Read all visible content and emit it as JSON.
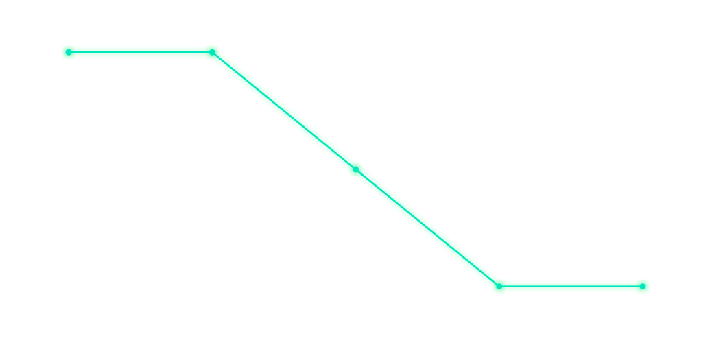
{
  "chart_data": {
    "type": "line",
    "x": [
      0,
      1,
      2,
      3,
      4
    ],
    "series": [
      {
        "values": [
          5,
          5,
          3,
          1,
          1
        ]
      }
    ],
    "ylim": [
      0.2,
      5.8
    ],
    "grid": false,
    "axes_visible": false,
    "line_color": "#00e6bf",
    "glow_color": "#00ff66"
  }
}
